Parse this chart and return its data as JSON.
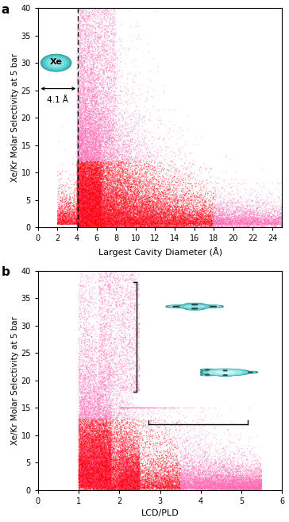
{
  "fig_width": 3.64,
  "fig_height": 6.57,
  "dpi": 100,
  "background_color": "#ffffff",
  "dot_color_dense": "#ff0000",
  "dot_color_sparse": "#ff69b4",
  "dot_alpha": 0.5,
  "dot_size": 0.8,
  "plot_a": {
    "xlabel": "Largest Cavity Diameter (Å)",
    "ylabel": "Xe/Kr Molar Selectivity at 5 bar",
    "xlim": [
      0,
      25
    ],
    "ylim": [
      0,
      40
    ],
    "xticks": [
      0,
      2,
      4,
      6,
      8,
      10,
      12,
      14,
      16,
      18,
      20,
      22,
      24
    ],
    "yticks": [
      0,
      5,
      10,
      15,
      20,
      25,
      30,
      35,
      40
    ],
    "dashed_x": 4.1,
    "label": "a",
    "xe_label": "Xe",
    "arrow_label": "4.1 Å"
  },
  "plot_b": {
    "xlabel": "LCD/PLD",
    "ylabel": "Xe/Kr Molar Selectivity at 5 bar",
    "xlim": [
      0,
      6
    ],
    "ylim": [
      0,
      40
    ],
    "xticks": [
      0,
      1,
      2,
      3,
      4,
      5,
      6
    ],
    "yticks": [
      0,
      5,
      10,
      15,
      20,
      25,
      30,
      35,
      40
    ],
    "label": "b"
  },
  "seed_a": 42,
  "seed_b": 123,
  "n_points_a": 50000,
  "n_points_b": 40000,
  "xe_sphere_color_outer": "#3aadad",
  "xe_sphere_color_mid": "#5ecece",
  "xe_sphere_color_inner": "#a8e8e8",
  "xe_sphere_color_highlight": "#d0f0f0"
}
